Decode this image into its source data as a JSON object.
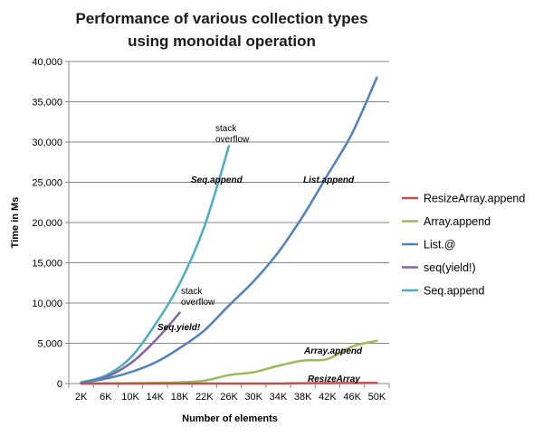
{
  "chart_data": {
    "type": "line",
    "title_lines": [
      "Performance of various collection types",
      "using monoidal operation"
    ],
    "xlabel": "Number of elements",
    "ylabel": "Time in Ms",
    "categories": [
      "2K",
      "6K",
      "10K",
      "14K",
      "18K",
      "22K",
      "26K",
      "30K",
      "34K",
      "38K",
      "42K",
      "46K",
      "50K"
    ],
    "yticks": [
      "0",
      "5,000",
      "10,000",
      "15,000",
      "20,000",
      "25,000",
      "30,000",
      "35,000",
      "40,000"
    ],
    "ylim": [
      0,
      40000
    ],
    "grid": "horizontal",
    "legend_position": "right",
    "series": [
      {
        "name": "ResizeArray.append",
        "color": "#c0504d",
        "values": [
          0,
          0,
          0,
          0,
          0,
          0,
          0,
          0,
          0,
          50,
          60,
          70,
          80
        ]
      },
      {
        "name": "Array.append",
        "color": "#9bbb59",
        "values": [
          0,
          20,
          50,
          80,
          150,
          350,
          1050,
          1400,
          2200,
          2850,
          3050,
          4600,
          5300
        ]
      },
      {
        "name": "List.@",
        "color": "#4f81bd",
        "values": [
          100,
          600,
          1400,
          2600,
          4400,
          6600,
          9700,
          12700,
          16300,
          20800,
          25900,
          31100,
          38000
        ]
      },
      {
        "name": "seq(yield!)",
        "color": "#8064a2",
        "values": [
          100,
          800,
          2500,
          5300,
          8800,
          null,
          null,
          null,
          null,
          null,
          null,
          null,
          null
        ]
      },
      {
        "name": "Seq.append",
        "color": "#4bacc6",
        "values": [
          150,
          1000,
          3200,
          7300,
          12400,
          19500,
          29500,
          null,
          null,
          null,
          null,
          null,
          null
        ]
      }
    ],
    "annotations": [
      {
        "lines": [
          "stack",
          "overflow"
        ],
        "near": "Seq.append end",
        "style": "normal"
      },
      {
        "lines": [
          "stack",
          "overflow"
        ],
        "near": "seq(yield!) end",
        "style": "normal"
      },
      {
        "lines": [
          "Seq.append"
        ],
        "near": "Seq.append curve",
        "style": "bold-italic"
      },
      {
        "lines": [
          "List.append"
        ],
        "near": "List.@ curve",
        "style": "bold-italic"
      },
      {
        "lines": [
          "Seq.yield!"
        ],
        "near": "seq(yield!) curve",
        "style": "bold-italic"
      },
      {
        "lines": [
          "Array.append"
        ],
        "near": "Array.append curve",
        "style": "bold-italic"
      },
      {
        "lines": [
          "ResizeArray"
        ],
        "near": "ResizeArray.append curve",
        "style": "bold-italic"
      }
    ]
  }
}
